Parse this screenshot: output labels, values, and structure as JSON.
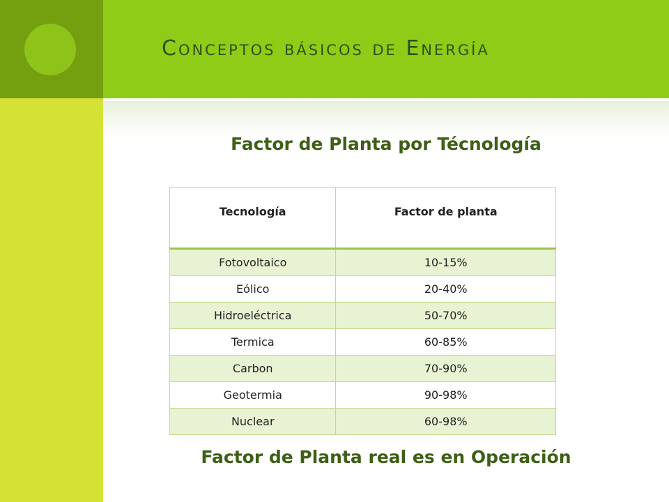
{
  "header": {
    "title": "Conceptos básicos de Energía"
  },
  "subtitle_top": "Factor de Planta por Técnología",
  "table": {
    "headers": [
      "Tecnología",
      "Factor de planta"
    ],
    "rows": [
      [
        "Fotovoltaico",
        "10-15%"
      ],
      [
        "Eólico",
        "20-40%"
      ],
      [
        "Hidroeléctrica",
        "50-70%"
      ],
      [
        "Termica",
        "60-85%"
      ],
      [
        "Carbon",
        "70-90%"
      ],
      [
        "Geotermia",
        "90-98%"
      ],
      [
        "Nuclear",
        "60-98%"
      ]
    ]
  },
  "subtitle_bottom": "Factor de Planta real es en Operación",
  "colors": {
    "left_bar": "#d4e236",
    "corner": "#74a00f",
    "header_band": "#8fcc17",
    "title_text": "#2e5010",
    "subtitle_text": "#3e5f16",
    "row_stripe": "#e7f3d2"
  }
}
